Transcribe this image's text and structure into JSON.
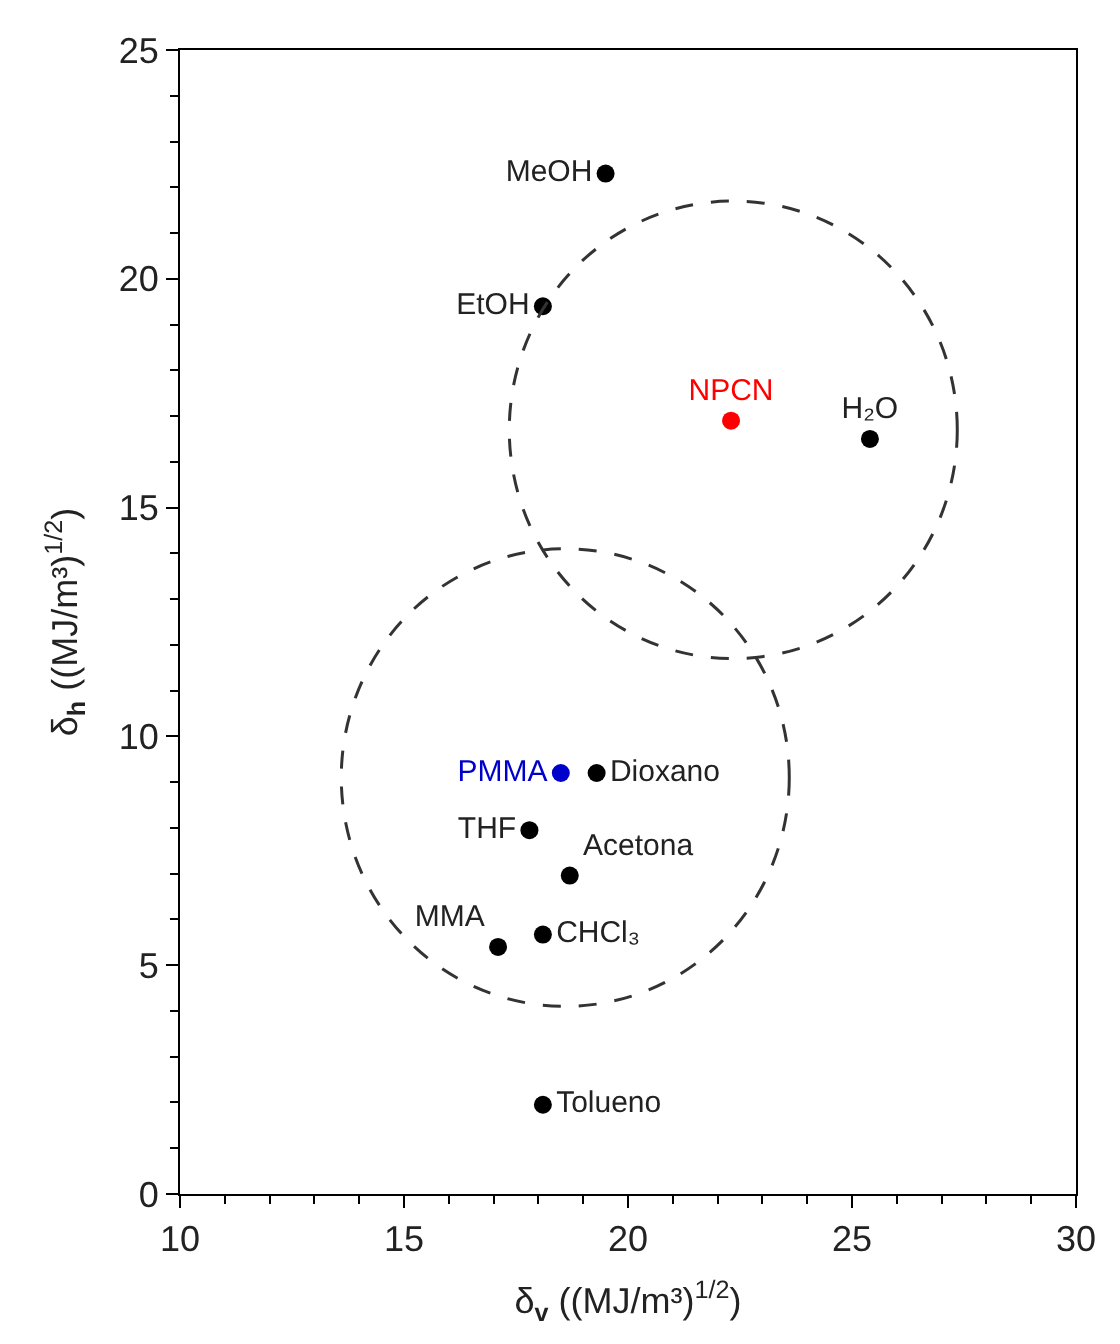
{
  "chart_data": {
    "type": "scatter",
    "xlabel": "δ$_{v}$ ((MJ/m³)$^{1/2}$)",
    "ylabel": "δ$_{h}$ ((MJ/m³)$^{1/2}$)",
    "xlim": [
      10,
      30
    ],
    "xticks": [
      10,
      15,
      20,
      25,
      30
    ],
    "ylim": [
      0,
      25
    ],
    "yticks": [
      0,
      5,
      10,
      15,
      20,
      25
    ],
    "grid": false,
    "legend": false,
    "marker": "circle",
    "series": [
      {
        "name": "MeOH",
        "color": "#000000",
        "x": [
          19.5
        ],
        "values": [
          22.3
        ]
      },
      {
        "name": "EtOH",
        "color": "#000000",
        "x": [
          18.1
        ],
        "values": [
          19.4
        ]
      },
      {
        "name": "NPCN",
        "color": "#ff0000",
        "x": [
          22.3
        ],
        "values": [
          16.9
        ]
      },
      {
        "name": "H₂O",
        "color": "#000000",
        "x": [
          25.4
        ],
        "values": [
          16.5
        ]
      },
      {
        "name": "PMMA",
        "color": "#0000cc",
        "x": [
          18.5
        ],
        "values": [
          9.2
        ]
      },
      {
        "name": "Dioxano",
        "color": "#000000",
        "x": [
          19.3
        ],
        "values": [
          9.2
        ]
      },
      {
        "name": "THF",
        "color": "#000000",
        "x": [
          17.8
        ],
        "values": [
          7.95
        ]
      },
      {
        "name": "Acetona",
        "color": "#000000",
        "x": [
          18.7
        ],
        "values": [
          6.96
        ]
      },
      {
        "name": "MMA",
        "color": "#000000",
        "x": [
          17.1
        ],
        "values": [
          5.4
        ]
      },
      {
        "name": "CHCl₃",
        "color": "#000000",
        "x": [
          18.1
        ],
        "values": [
          5.67
        ]
      },
      {
        "name": "Tolueno",
        "color": "#000000",
        "x": [
          18.1
        ],
        "values": [
          1.95
        ]
      }
    ]
  }
}
